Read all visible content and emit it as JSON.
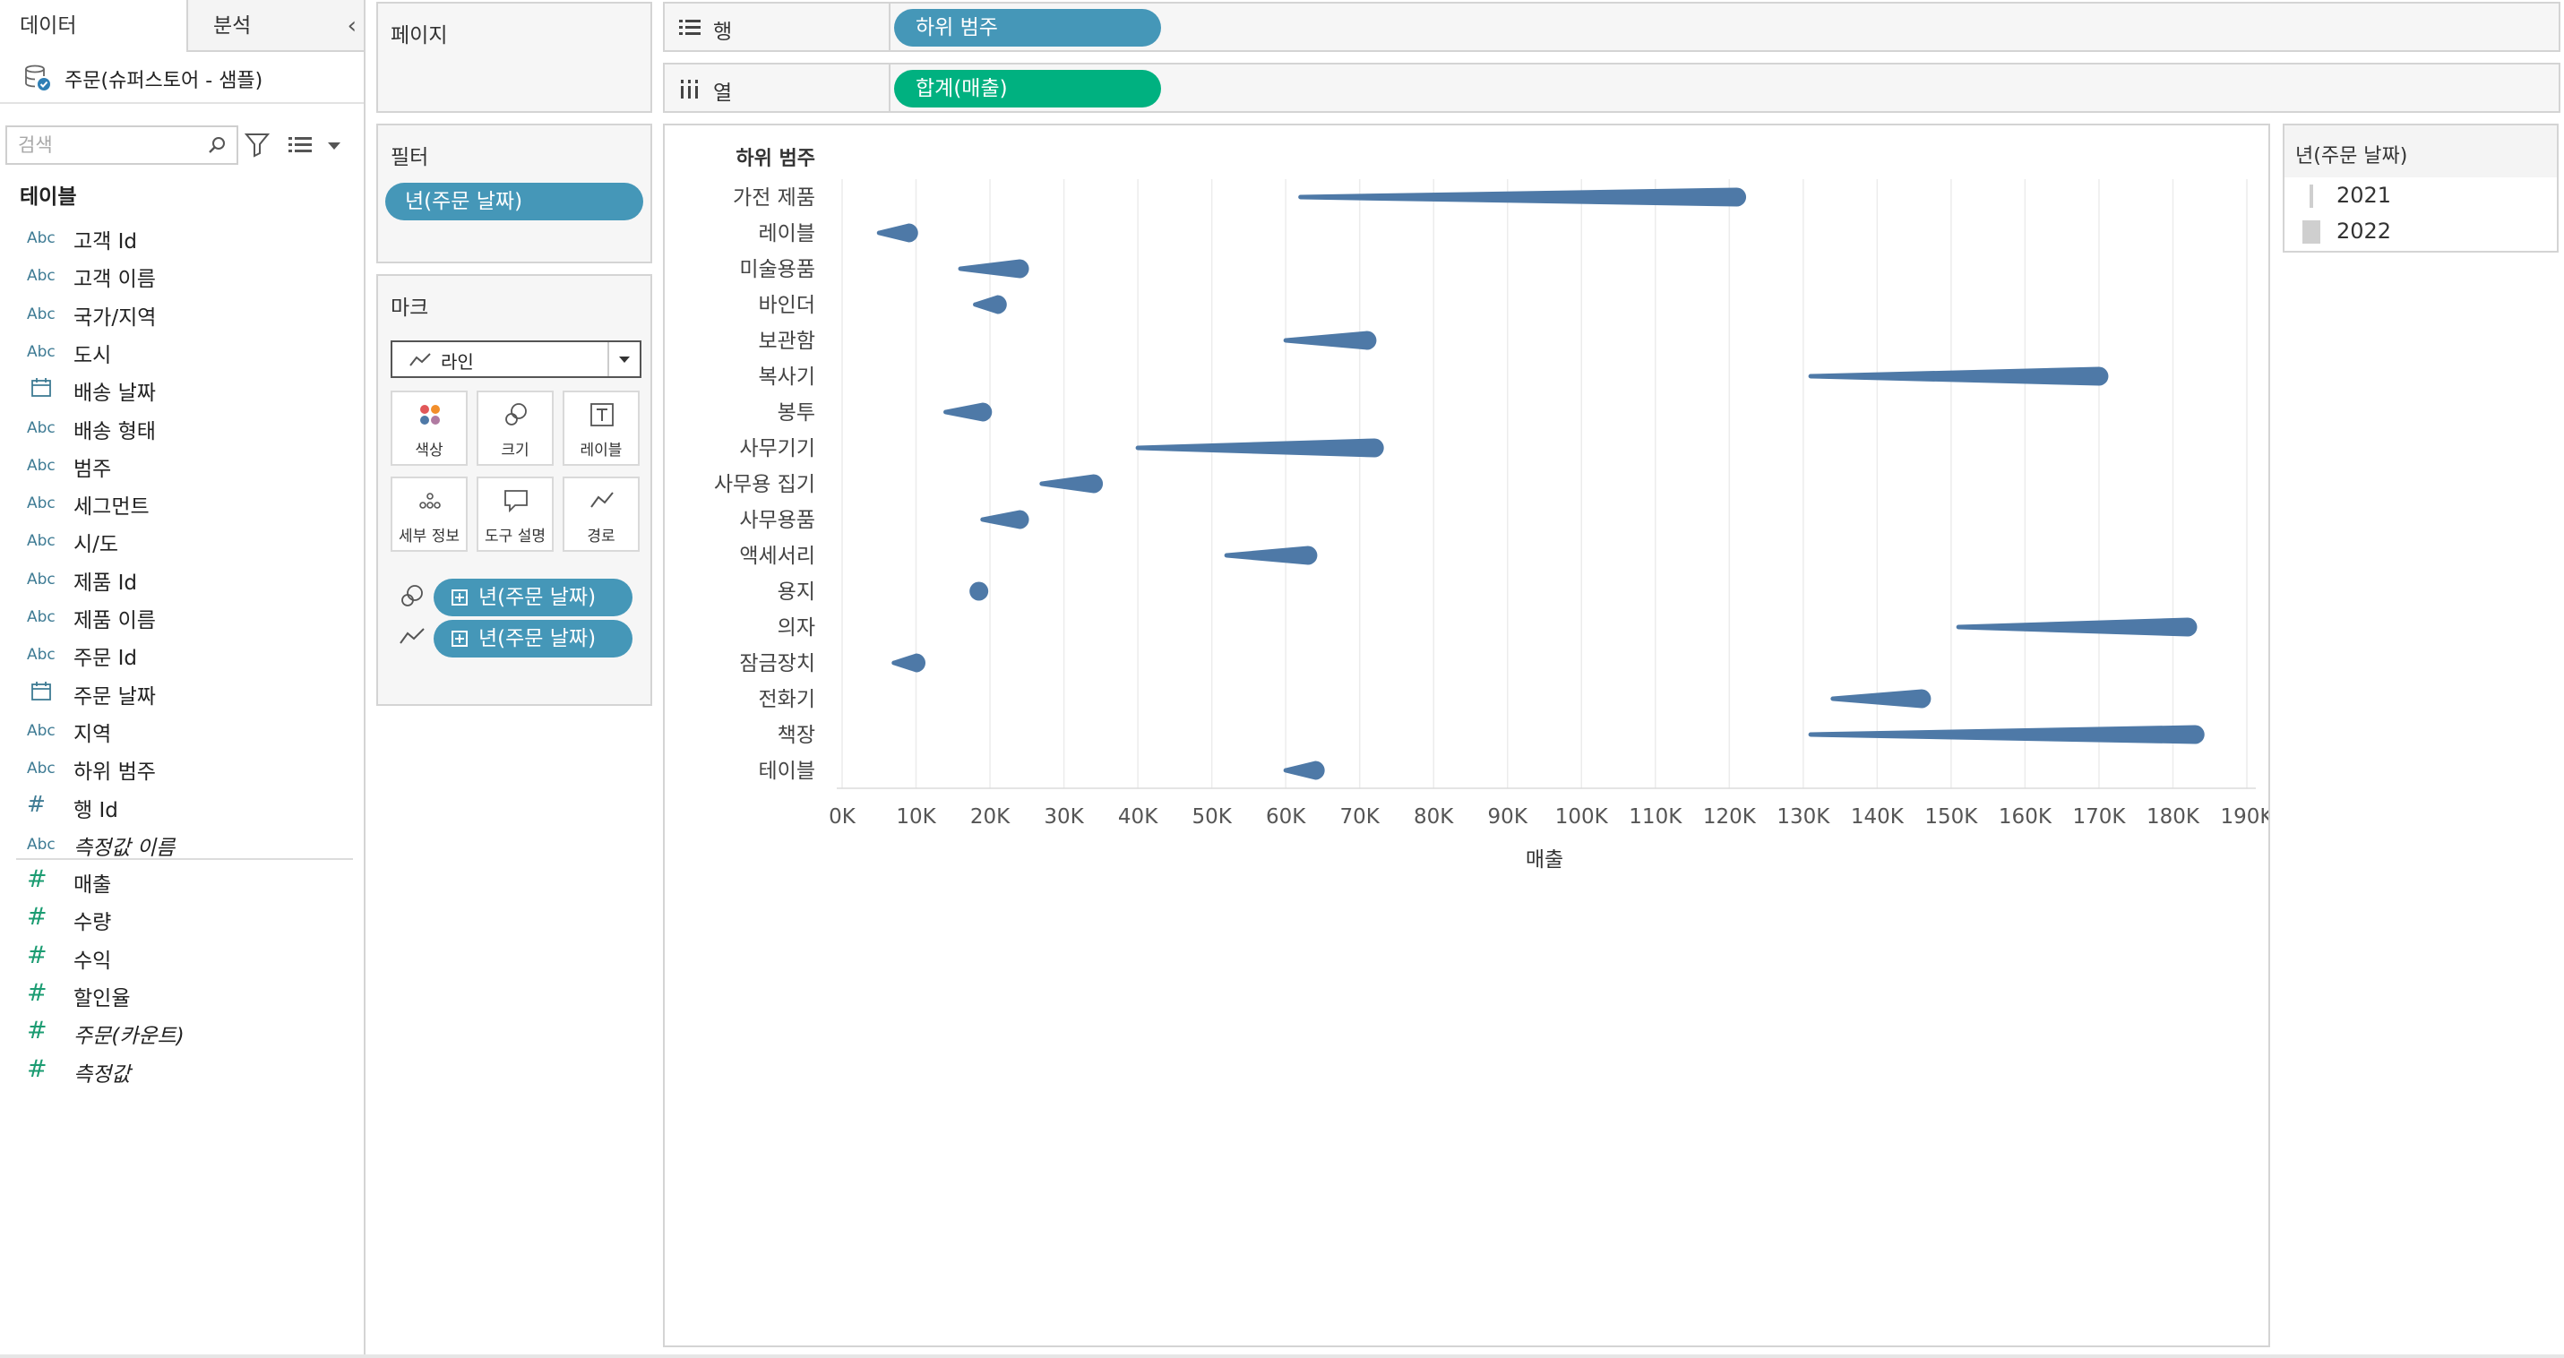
{
  "data_pane": {
    "tab_data": "데이터",
    "tab_analysis": "분석",
    "datasource": "주문(슈퍼스토어 - 샘플)",
    "search_placeholder": "검색",
    "tables_heading": "테이블",
    "fields": [
      {
        "type": "Abc",
        "name": "고객 Id"
      },
      {
        "type": "Abc",
        "name": "고객 이름"
      },
      {
        "type": "Abc",
        "name": "국가/지역"
      },
      {
        "type": "Abc",
        "name": "도시"
      },
      {
        "type": "date",
        "name": "배송 날짜"
      },
      {
        "type": "Abc",
        "name": "배송 형태"
      },
      {
        "type": "Abc",
        "name": "범주"
      },
      {
        "type": "Abc",
        "name": "세그먼트"
      },
      {
        "type": "Abc",
        "name": "시/도"
      },
      {
        "type": "Abc",
        "name": "제품 Id"
      },
      {
        "type": "Abc",
        "name": "제품 이름"
      },
      {
        "type": "Abc",
        "name": "주문 Id"
      },
      {
        "type": "date",
        "name": "주문 날짜"
      },
      {
        "type": "Abc",
        "name": "지역"
      },
      {
        "type": "Abc",
        "name": "하위 범주"
      },
      {
        "type": "#",
        "name": "행 Id"
      },
      {
        "type": "Abc",
        "name": "측정값 이름",
        "italic": true
      }
    ],
    "measures": [
      {
        "type": "#",
        "name": "매출"
      },
      {
        "type": "#",
        "name": "수량"
      },
      {
        "type": "#",
        "name": "수익"
      },
      {
        "type": "#",
        "name": "할인율"
      },
      {
        "type": "#",
        "name": "주문(카운트)",
        "italic": true
      },
      {
        "type": "#",
        "name": "측정값",
        "italic": true
      }
    ]
  },
  "pages_card": {
    "title": "페이지"
  },
  "filters_card": {
    "title": "필터",
    "pill": "년(주문 날짜)"
  },
  "marks_card": {
    "title": "마크",
    "mark_type": "라인",
    "buttons": [
      "색상",
      "크기",
      "레이블",
      "세부 정보",
      "도구 설명",
      "경로"
    ],
    "size_pill": "년(주문 날짜)",
    "path_pill": "년(주문 날짜)"
  },
  "shelves": {
    "rows_label": "행",
    "rows_pill": "하위 범주",
    "cols_label": "열",
    "cols_pill": "합계(매출)"
  },
  "legend": {
    "title": "년(주문 날짜)",
    "items": [
      "2021",
      "2022"
    ]
  },
  "colors": {
    "mark": "#4e79a7",
    "dimension_pill": "#4597b8",
    "measure_pill": "#00b180"
  },
  "chart_data": {
    "type": "line",
    "row_header": "하위 범주",
    "xlabel": "매출",
    "xlim": [
      0,
      190000
    ],
    "x_ticks": [
      "0K",
      "10K",
      "20K",
      "30K",
      "40K",
      "50K",
      "60K",
      "70K",
      "80K",
      "90K",
      "100K",
      "110K",
      "120K",
      "130K",
      "140K",
      "150K",
      "160K",
      "170K",
      "180K",
      "190K"
    ],
    "grid": true,
    "size_encoding": "년(주문 날짜)",
    "categories": [
      "가전 제품",
      "레이블",
      "미술용품",
      "바인더",
      "보관함",
      "복사기",
      "봉투",
      "사무기기",
      "사무용 집기",
      "사무용품",
      "액세서리",
      "용지",
      "의자",
      "잠금장치",
      "전화기",
      "책장",
      "테이블"
    ],
    "series": [
      {
        "name": "2021",
        "values": [
          62000,
          5000,
          16000,
          18000,
          60000,
          131000,
          14000,
          40000,
          27000,
          19000,
          52000,
          18500,
          151000,
          7000,
          134000,
          131000,
          60000
        ]
      },
      {
        "name": "2022",
        "values": [
          121000,
          9000,
          24000,
          21000,
          71000,
          170000,
          19000,
          72000,
          34000,
          24000,
          63000,
          18500,
          182000,
          10000,
          146000,
          183000,
          64000
        ]
      }
    ]
  }
}
